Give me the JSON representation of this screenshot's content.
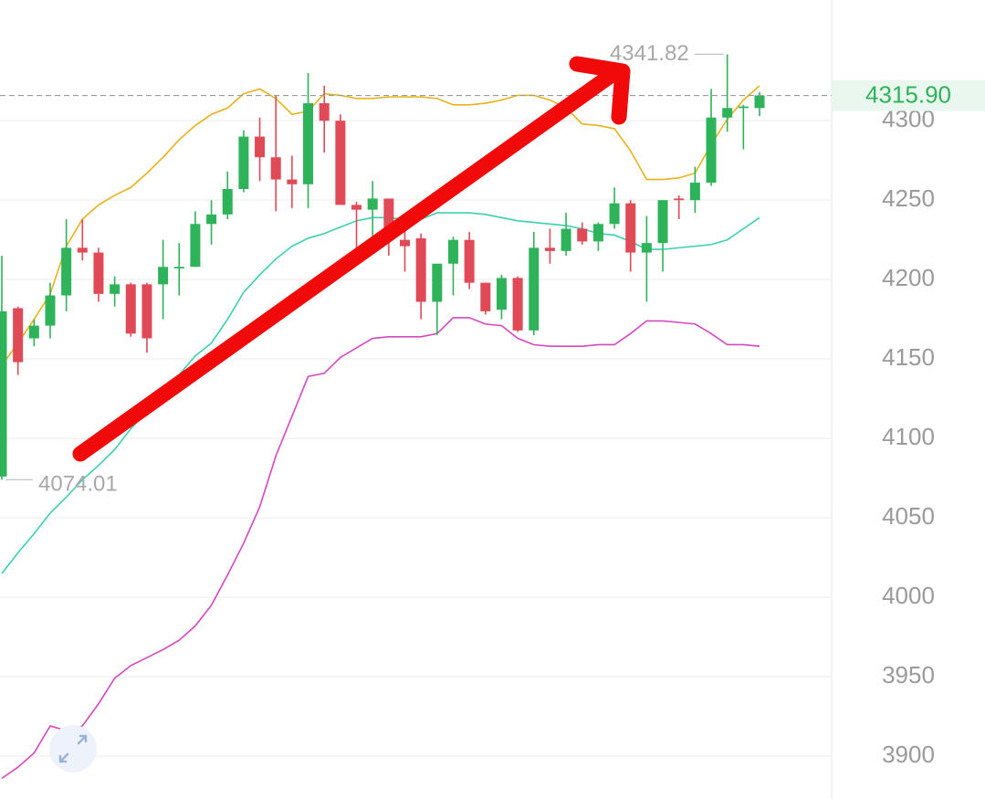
{
  "chart_data": {
    "type": "candlestick",
    "ylim": [
      3873,
      4376
    ],
    "yticks": [
      3900,
      3950,
      4000,
      4050,
      4100,
      4150,
      4200,
      4250,
      4300
    ],
    "grid": true,
    "up_color": "#2fb35a",
    "down_color": "#e04a57",
    "open": [
      4076,
      4182,
      4163,
      4171,
      4190,
      4220,
      4217,
      4191,
      4197,
      4197,
      4197,
      4207,
      4208,
      4235,
      4241,
      4257,
      4290,
      4277,
      4263,
      4260,
      4311,
      4300,
      4247,
      4244,
      4251,
      4225,
      4226,
      4186,
      4210,
      4225,
      4198,
      4181,
      4201,
      4168,
      4220,
      4218,
      4232,
      4224,
      4235,
      4248,
      4217,
      4223,
      4251,
      4250,
      4261,
      4302,
      4308,
      4308
    ],
    "high": [
      4215,
      4183,
      4175,
      4198,
      4238,
      4238,
      4220,
      4202,
      4198,
      4198,
      4225,
      4223,
      4243,
      4250,
      4268,
      4294,
      4302,
      4316,
      4278,
      4330,
      4322,
      4304,
      4249,
      4262,
      4251,
      4240,
      4229,
      4210,
      4227,
      4230,
      4198,
      4203,
      4202,
      4230,
      4232,
      4242,
      4236,
      4236,
      4258,
      4250,
      4240,
      4250,
      4253,
      4271,
      4320,
      4341.82,
      4310,
      4318
    ],
    "low": [
      4074.01,
      4140,
      4158,
      4163,
      4180,
      4212,
      4186,
      4183,
      4164,
      4154,
      4175,
      4190,
      4208,
      4222,
      4238,
      4255,
      4262,
      4243,
      4245,
      4245,
      4280,
      4247,
      4210,
      4225,
      4215,
      4205,
      4175,
      4165,
      4190,
      4194,
      4178,
      4175,
      4167,
      4165,
      4210,
      4215,
      4222,
      4218,
      4232,
      4205,
      4186,
      4205,
      4238,
      4242,
      4259,
      4293,
      4282,
      4303
    ],
    "close": [
      4180,
      4148,
      4171,
      4190,
      4220,
      4217,
      4191,
      4197,
      4166,
      4163,
      4208,
      4208,
      4235,
      4241,
      4257,
      4290,
      4277,
      4263,
      4260,
      4311,
      4300,
      4247,
      4244,
      4251,
      4225,
      4221,
      4186,
      4210,
      4225,
      4198,
      4180,
      4201,
      4168,
      4220,
      4218,
      4232,
      4224,
      4235,
      4248,
      4217,
      4223,
      4250,
      4250,
      4261,
      4302,
      4308,
      4309,
      4315.9
    ],
    "series": [
      {
        "color": "#e8b21e",
        "values": [
          4146,
          4160,
          4175,
          4191,
          4221,
          4238,
          4247,
          4253,
          4258,
          4267,
          4277,
          4288,
          4297,
          4304,
          4308,
          4317,
          4320,
          4314,
          4304,
          4306,
          4317,
          4316,
          4314,
          4314,
          4315,
          4315,
          4315,
          4314,
          4310,
          4310,
          4311,
          4313,
          4316,
          4316,
          4313,
          4308,
          4298,
          4297,
          4295,
          4281,
          4263,
          4263,
          4264,
          4267,
          4285,
          4301,
          4313,
          4322
        ]
      },
      {
        "color": "#3ccfb0",
        "values": [
          4015,
          4028,
          4040,
          4053,
          4063,
          4074,
          4083,
          4093,
          4106,
          4117,
          4129,
          4140,
          4152,
          4160,
          4175,
          4192,
          4203,
          4213,
          4221,
          4226,
          4229,
          4233,
          4237,
          4239,
          4239,
          4238,
          4238,
          4242,
          4242,
          4242,
          4241,
          4239,
          4237,
          4236,
          4235,
          4234,
          4232,
          4229,
          4228,
          4224,
          4219,
          4219,
          4220,
          4221,
          4222,
          4225,
          4232,
          4239
        ]
      },
      {
        "color": "#d548c0",
        "values": [
          3886,
          3893,
          3902,
          3919,
          3916,
          3919,
          3933,
          3949,
          3957,
          3962,
          3967,
          3973,
          3982,
          3995,
          4014,
          4034,
          4057,
          4089,
          4114,
          4139,
          4141,
          4151,
          4157,
          4163,
          4164,
          4164,
          4164,
          4166,
          4176,
          4176,
          4172,
          4171,
          4163,
          4159,
          4158,
          4158,
          4158,
          4159,
          4159,
          4166,
          4174,
          4174,
          4173,
          4172,
          4166,
          4159,
          4159,
          4158
        ]
      }
    ],
    "max_label": 4341.82,
    "min_label": 4074.01,
    "last_price": {
      "value": 4315.9,
      "label": "4315.90"
    }
  }
}
